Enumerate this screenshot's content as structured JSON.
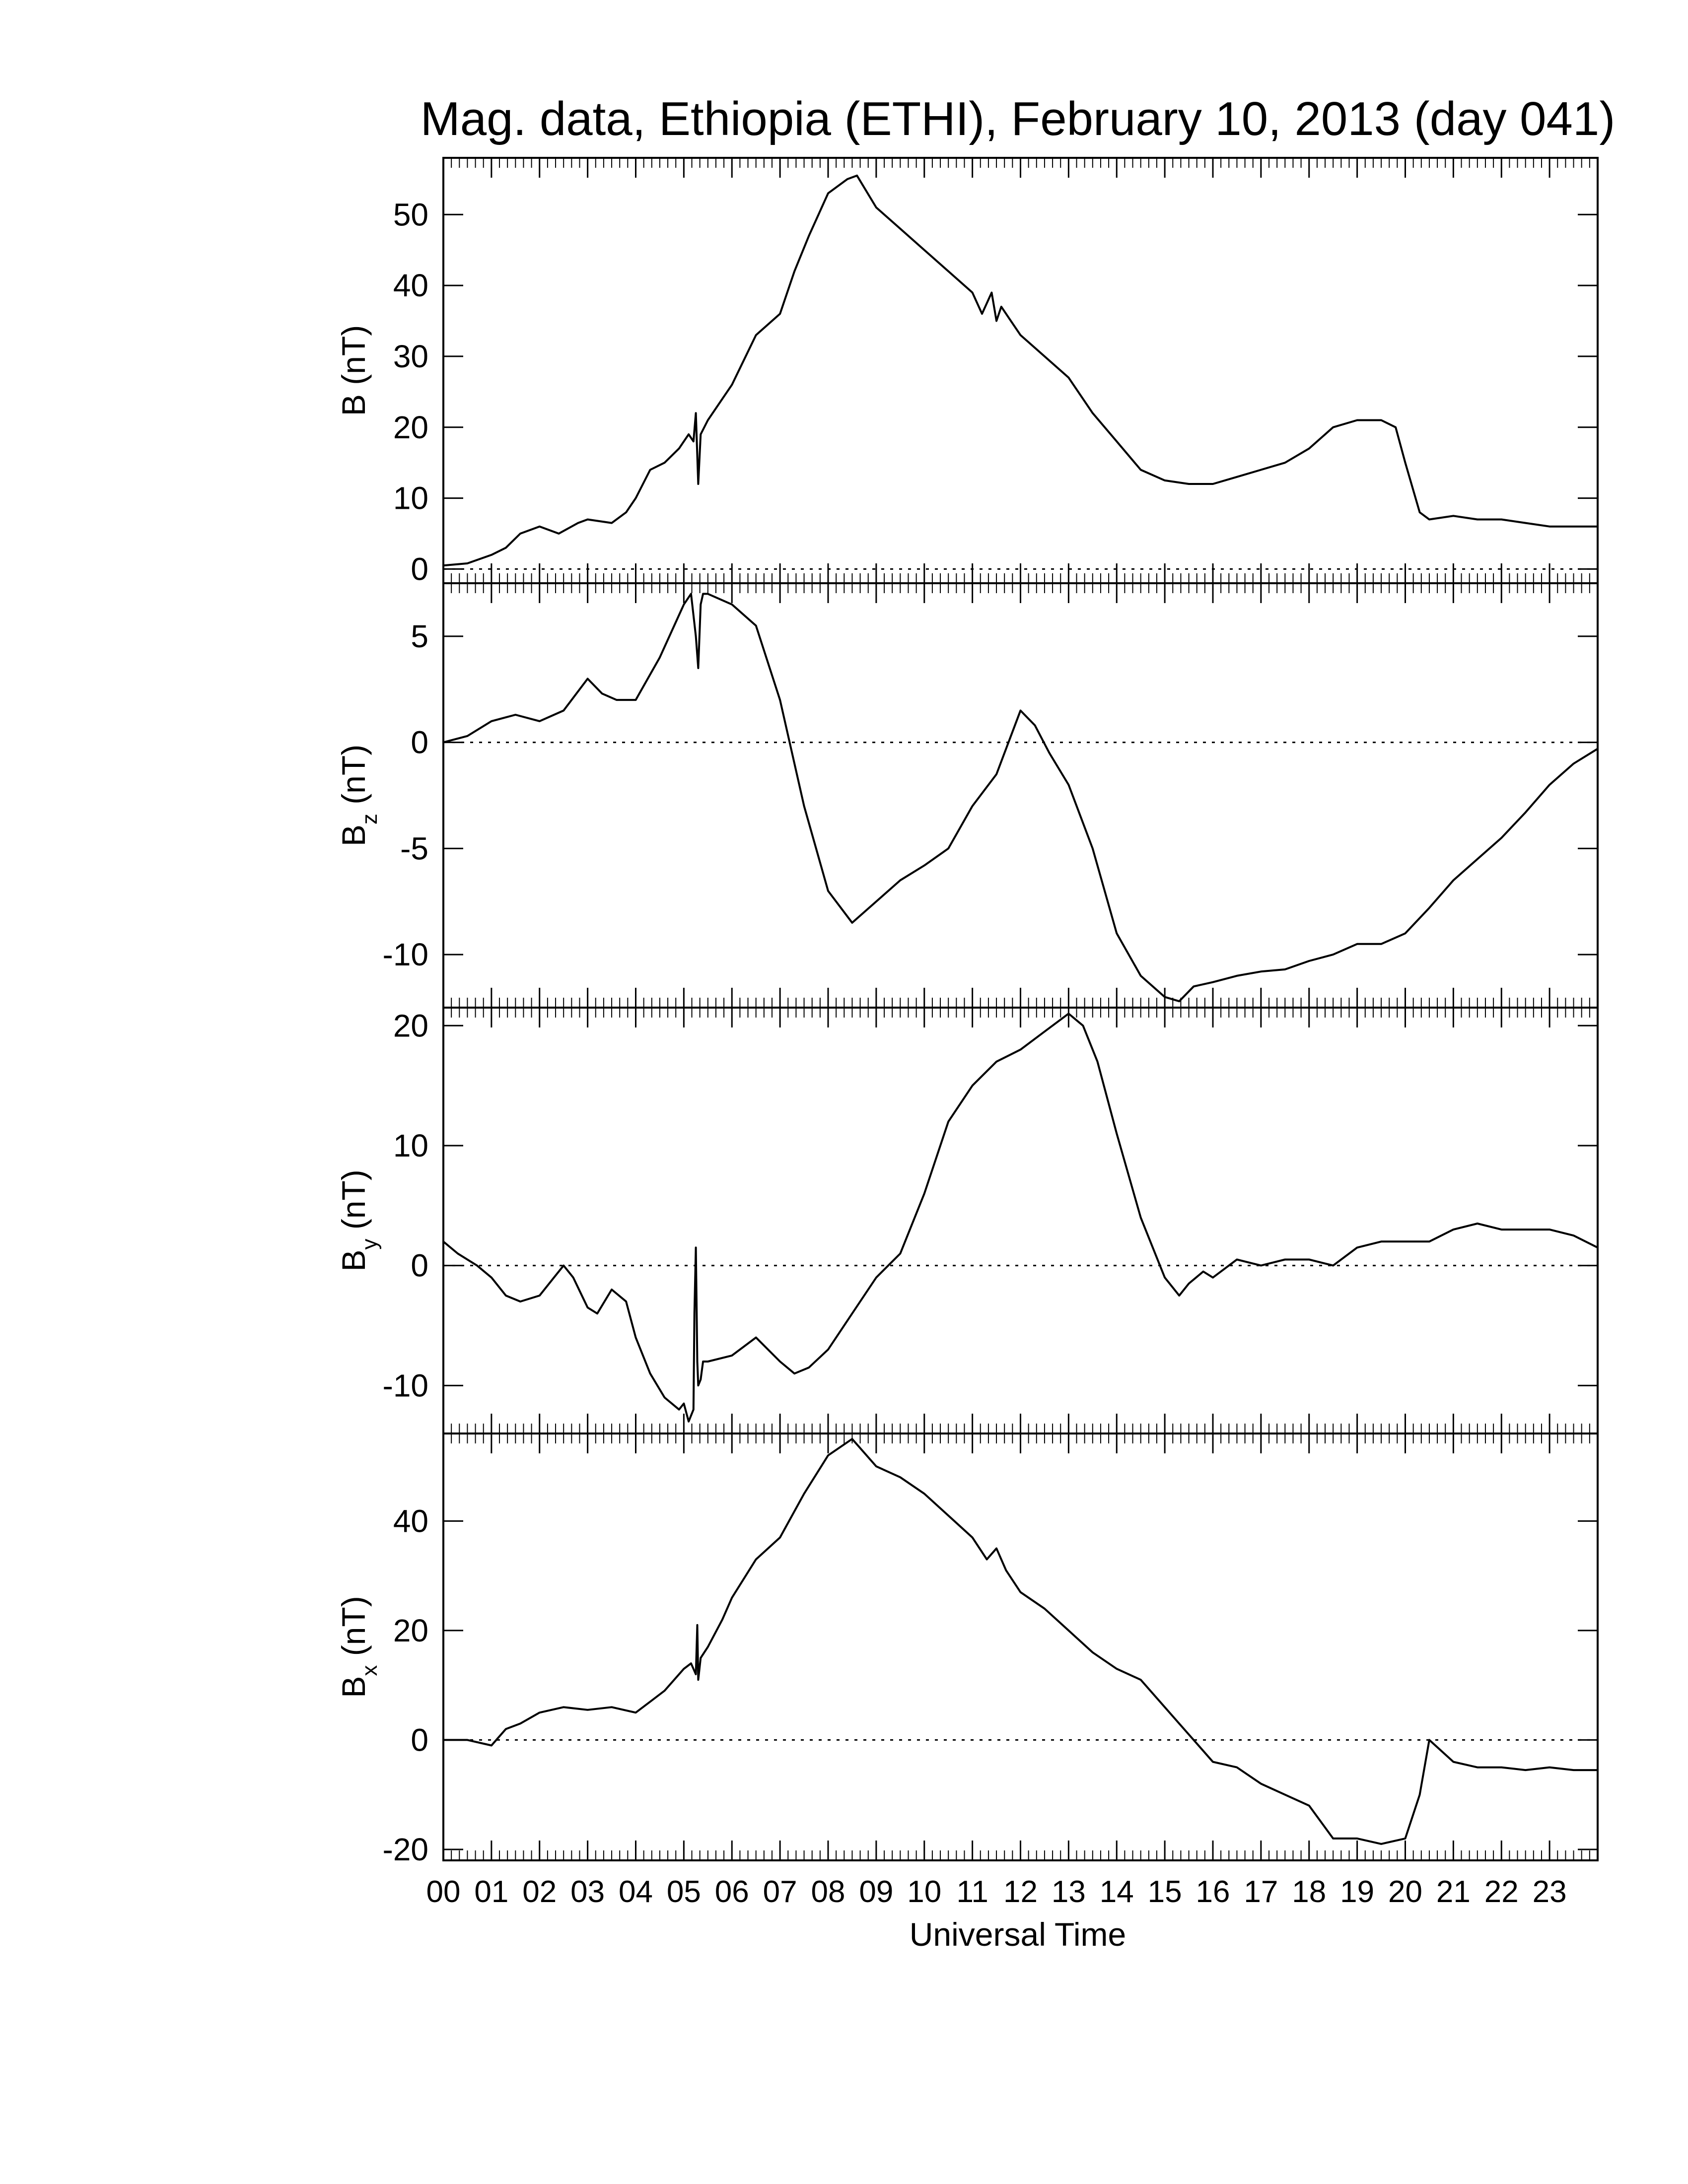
{
  "chart_data": [
    {
      "type": "line",
      "ylabel": "B (nT)",
      "ylabel_main": "B",
      "ylabel_sub": "",
      "ylabel_unit": "(nT)",
      "ylim": [
        -2,
        58
      ],
      "yticks": [
        0,
        10,
        20,
        30,
        40,
        50
      ],
      "zero_line": true,
      "x": [
        0.0,
        0.5,
        1.0,
        1.3,
        1.6,
        2.0,
        2.4,
        2.8,
        3.0,
        3.5,
        3.8,
        4.0,
        4.3,
        4.6,
        4.9,
        5.1,
        5.2,
        5.25,
        5.3,
        5.35,
        5.5,
        5.8,
        6.0,
        6.5,
        7.0,
        7.3,
        7.6,
        8.0,
        8.4,
        8.6,
        9.0,
        9.5,
        10.0,
        10.5,
        11.0,
        11.2,
        11.4,
        11.5,
        11.6,
        11.8,
        12.0,
        12.5,
        13.0,
        13.5,
        14.0,
        14.5,
        15.0,
        15.5,
        16.0,
        16.5,
        17.0,
        17.5,
        18.0,
        18.5,
        19.0,
        19.5,
        19.8,
        20.0,
        20.3,
        20.5,
        21.0,
        21.5,
        22.0,
        22.5,
        23.0,
        23.5,
        24.0
      ],
      "y": [
        0.5,
        0.8,
        2,
        3,
        5,
        6,
        5,
        6.5,
        7,
        6.5,
        8,
        10,
        14,
        15,
        17,
        19,
        18,
        22,
        12,
        19,
        21,
        24,
        26,
        33,
        36,
        42,
        47,
        53,
        55,
        55.5,
        51,
        48,
        45,
        42,
        39,
        36,
        39,
        35,
        37,
        35,
        33,
        30,
        27,
        22,
        18,
        14,
        12.5,
        12,
        12,
        13,
        14,
        15,
        17,
        20,
        21,
        21,
        20,
        15,
        8,
        7,
        7.5,
        7,
        7,
        6.5,
        6,
        6,
        6
      ],
      "x_ticks": [
        "00",
        "01",
        "02",
        "03",
        "04",
        "05",
        "06",
        "07",
        "08",
        "09",
        "10",
        "11",
        "12",
        "13",
        "14",
        "15",
        "16",
        "17",
        "18",
        "19",
        "20",
        "21",
        "22",
        "23"
      ]
    },
    {
      "type": "line",
      "ylabel": "Bz (nT)",
      "ylabel_main": "B",
      "ylabel_sub": "z",
      "ylabel_unit": "(nT)",
      "ylim": [
        -12.5,
        7.5
      ],
      "yticks": [
        -10,
        -5,
        0,
        5
      ],
      "zero_line": true,
      "x": [
        0.0,
        0.5,
        1.0,
        1.5,
        2.0,
        2.5,
        3.0,
        3.3,
        3.6,
        4.0,
        4.5,
        4.8,
        5.0,
        5.15,
        5.25,
        5.3,
        5.35,
        5.4,
        5.5,
        6.0,
        6.5,
        7.0,
        7.5,
        8.0,
        8.5,
        9.0,
        9.5,
        10.0,
        10.5,
        11.0,
        11.5,
        12.0,
        12.3,
        12.6,
        13.0,
        13.5,
        14.0,
        14.5,
        15.0,
        15.3,
        15.6,
        16.0,
        16.5,
        17.0,
        17.5,
        18.0,
        18.5,
        19.0,
        19.5,
        20.0,
        20.5,
        21.0,
        21.5,
        22.0,
        22.5,
        23.0,
        23.5,
        24.0
      ],
      "y": [
        0,
        0.3,
        1,
        1.3,
        1,
        1.5,
        3,
        2.3,
        2,
        2,
        4,
        5.5,
        6.5,
        7,
        5,
        3.5,
        6.5,
        7,
        7,
        6.5,
        5.5,
        2,
        -3,
        -7,
        -8.5,
        -7.5,
        -6.5,
        -5.8,
        -5,
        -3,
        -1.5,
        1.5,
        0.8,
        -0.5,
        -2,
        -5,
        -9,
        -11,
        -12,
        -12.2,
        -11.5,
        -11.3,
        -11,
        -10.8,
        -10.7,
        -10.3,
        -10,
        -9.5,
        -9.5,
        -9,
        -7.8,
        -6.5,
        -5.5,
        -4.5,
        -3.3,
        -2,
        -1,
        -0.3
      ]
    },
    {
      "type": "line",
      "ylabel": "By (nT)",
      "ylabel_main": "B",
      "ylabel_sub": "y",
      "ylabel_unit": "(nT)",
      "ylim": [
        -14,
        21.5
      ],
      "yticks": [
        -10,
        0,
        10,
        20
      ],
      "zero_line": true,
      "x": [
        0.0,
        0.3,
        0.7,
        1.0,
        1.3,
        1.6,
        2.0,
        2.3,
        2.5,
        2.7,
        3.0,
        3.2,
        3.5,
        3.8,
        4.0,
        4.3,
        4.6,
        4.9,
        5.0,
        5.1,
        5.2,
        5.22,
        5.25,
        5.28,
        5.3,
        5.35,
        5.4,
        5.5,
        6.0,
        6.5,
        7.0,
        7.3,
        7.6,
        8.0,
        8.5,
        9.0,
        9.5,
        10.0,
        10.5,
        11.0,
        11.5,
        12.0,
        12.5,
        13.0,
        13.3,
        13.6,
        14.0,
        14.5,
        15.0,
        15.3,
        15.5,
        15.8,
        16.0,
        16.5,
        17.0,
        17.5,
        18.0,
        18.5,
        19.0,
        19.5,
        20.0,
        20.5,
        21.0,
        21.5,
        22.0,
        22.5,
        23.0,
        23.5,
        24.0
      ],
      "y": [
        2,
        1,
        0,
        -1,
        -2.5,
        -3,
        -2.5,
        -1,
        0,
        -1,
        -3.5,
        -4,
        -2,
        -3,
        -6,
        -9,
        -11,
        -12,
        -11.5,
        -13,
        -12,
        -4,
        1.5,
        -8,
        -10,
        -9.5,
        -8,
        -8,
        -7.5,
        -6,
        -8,
        -9,
        -8.5,
        -7,
        -4,
        -1,
        1,
        6,
        12,
        15,
        17,
        18,
        19.5,
        21,
        20,
        17,
        11,
        4,
        -1,
        -2.5,
        -1.5,
        -0.5,
        -1,
        0.5,
        0,
        0.5,
        0.5,
        0,
        1.5,
        2,
        2,
        2,
        3,
        3.5,
        3,
        3,
        3,
        2.5,
        1.5
      ]
    },
    {
      "type": "line",
      "ylabel": "Bx (nT)",
      "ylabel_main": "B",
      "ylabel_sub": "x",
      "ylabel_unit": "(nT)",
      "ylim": [
        -22,
        56
      ],
      "yticks": [
        -20,
        0,
        20,
        40
      ],
      "zero_line": true,
      "x": [
        0.0,
        0.5,
        1.0,
        1.3,
        1.6,
        2.0,
        2.5,
        3.0,
        3.5,
        4.0,
        4.3,
        4.6,
        5.0,
        5.15,
        5.25,
        5.28,
        5.3,
        5.35,
        5.5,
        5.8,
        6.0,
        6.5,
        7.0,
        7.5,
        8.0,
        8.5,
        9.0,
        9.5,
        10.0,
        10.5,
        11.0,
        11.3,
        11.5,
        11.7,
        12.0,
        12.5,
        13.0,
        13.5,
        14.0,
        14.5,
        15.0,
        15.3,
        15.6,
        16.0,
        16.5,
        17.0,
        17.5,
        18.0,
        18.5,
        19.0,
        19.5,
        20.0,
        20.3,
        20.5,
        21.0,
        21.5,
        22.0,
        22.5,
        23.0,
        23.5,
        24.0
      ],
      "y": [
        0,
        0,
        -1,
        2,
        3,
        5,
        6,
        5.5,
        6,
        5,
        7,
        9,
        13,
        14,
        12,
        21,
        11,
        15,
        17,
        22,
        26,
        33,
        37,
        45,
        52,
        55,
        50,
        48,
        45,
        41,
        37,
        33,
        35,
        31,
        27,
        24,
        20,
        16,
        13,
        11,
        6,
        3,
        0,
        -4,
        -5,
        -8,
        -10,
        -12,
        -18,
        -18,
        -19,
        -18,
        -10,
        0,
        -4,
        -5,
        -5,
        -5.5,
        -5,
        -5.5,
        -5.5
      ]
    }
  ],
  "title": "Mag. data, Ethiopia (ETHI), February 10, 2013 (day 041)",
  "xlabel": "Universal Time",
  "x_ticks": [
    "00",
    "01",
    "02",
    "03",
    "04",
    "05",
    "06",
    "07",
    "08",
    "09",
    "10",
    "11",
    "12",
    "13",
    "14",
    "15",
    "16",
    "17",
    "18",
    "19",
    "20",
    "21",
    "22",
    "23"
  ]
}
